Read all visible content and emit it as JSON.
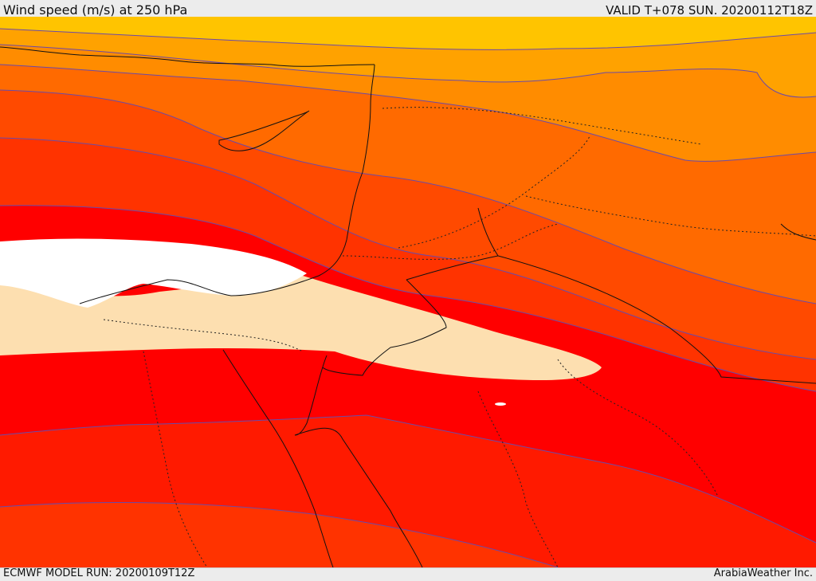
{
  "header": {
    "title_left": "Wind speed (m/s) at 250 hPa",
    "title_right": "VALID T+078 SUN. 20200112T18Z"
  },
  "footer": {
    "model_run": "ECMWF MODEL RUN: 20200109T12Z",
    "credit": "ArabiaWeather Inc."
  },
  "map": {
    "variable": "wind speed",
    "pressure_level": "250 hPa",
    "colors": {
      "jet_core_white": "#ffffff",
      "band_peach": "#fddfb0",
      "band_red_strong": "#ff0000",
      "band_red": "#ff1a00",
      "band_red_orange": "#ff3300",
      "band_orange_red": "#ff4a00",
      "band_orange": "#ff6a00",
      "band_light_orange": "#ff8c00",
      "band_amber": "#ffa200",
      "band_yellow": "#ffc400",
      "contour_line": "#6b4aa8",
      "coastline": "#111111",
      "border_dotted": "#222222"
    }
  }
}
